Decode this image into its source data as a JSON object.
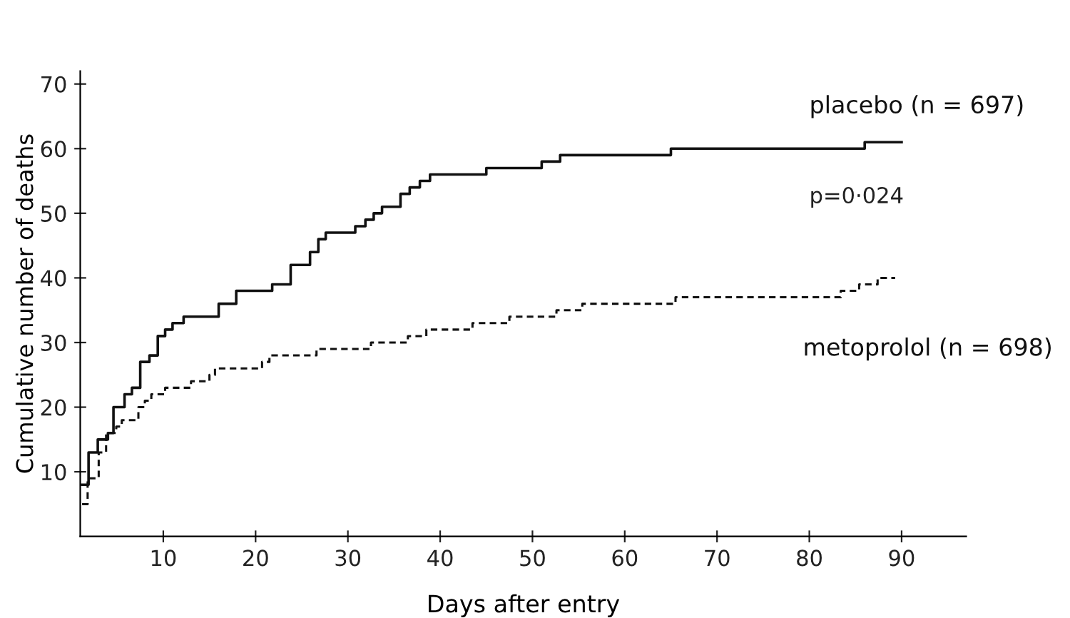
{
  "chart_data": {
    "type": "step",
    "xlabel": "Days after entry",
    "ylabel": "Cumulative number of deaths",
    "xlim": [
      1,
      97
    ],
    "ylim": [
      0,
      72
    ],
    "xticks": [
      10,
      20,
      30,
      40,
      50,
      60,
      70,
      80,
      90
    ],
    "yticks": [
      10,
      20,
      30,
      40,
      50,
      60,
      70
    ],
    "grid": false,
    "legend": false,
    "series": [
      {
        "name": "placebo (n = 697)",
        "color": "#111111",
        "line_style": "solid",
        "x": [
          1.2,
          1.9,
          2.9,
          4,
          4.6,
          5.8,
          6.6,
          7.5,
          8.5,
          9.4,
          10.2,
          11,
          12.2,
          16,
          17.9,
          21.8,
          23.8,
          25.9,
          26.8,
          27.6,
          30.8,
          31.9,
          32.8,
          33.7,
          35.7,
          36.7,
          37.8,
          38.9,
          45,
          51,
          53,
          65,
          86,
          90
        ],
        "values": [
          8,
          13,
          15,
          16,
          20,
          22,
          23,
          27,
          28,
          31,
          32,
          33,
          34,
          36,
          38,
          39,
          42,
          44,
          46,
          47,
          48,
          49,
          50,
          51,
          53,
          54,
          55,
          56,
          57,
          58,
          59,
          60,
          61,
          61
        ]
      },
      {
        "name": "metoprolol (n = 698)",
        "color": "#111111",
        "line_style": "dashed",
        "x": [
          1.2,
          1.8,
          3,
          3.8,
          4.9,
          5.5,
          7.3,
          8,
          8.7,
          10.2,
          13,
          15,
          15.6,
          20.7,
          21.5,
          26.6,
          32.5,
          36.5,
          38.5,
          43.5,
          47.5,
          52.6,
          55.4,
          65.5,
          83.4,
          85.4,
          87.4,
          89.3
        ],
        "values": [
          5,
          9,
          13,
          16,
          17,
          18,
          20,
          21,
          22,
          23,
          24,
          25,
          26,
          27,
          28,
          29,
          30,
          31,
          32,
          33,
          34,
          35,
          36,
          37,
          38,
          39,
          40,
          40
        ]
      }
    ],
    "annotations": [
      "p=0·024"
    ]
  }
}
